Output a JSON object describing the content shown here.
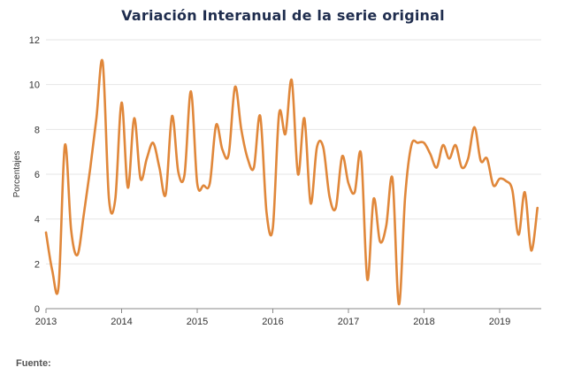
{
  "chart_data": {
    "type": "line",
    "title": "Variación Interanual de la serie original",
    "xlabel": "",
    "ylabel": "Porcentajes",
    "ylim": [
      0,
      12
    ],
    "yticks": [
      "0",
      "2",
      "4",
      "6",
      "8",
      "10",
      "12"
    ],
    "xticks": [
      "2013",
      "2014",
      "2015",
      "2016",
      "2017",
      "2018",
      "2019"
    ],
    "xlim": [
      2013.0,
      2019.55
    ],
    "grid": "horizontal",
    "line_color": "#e0873a",
    "series": [
      {
        "x": [
          2013.0,
          2013.083,
          2013.167,
          2013.25,
          2013.333,
          2013.417,
          2013.5,
          2013.583,
          2013.667,
          2013.75,
          2013.833,
          2013.917,
          2014.0,
          2014.083,
          2014.167,
          2014.25,
          2014.333,
          2014.417,
          2014.5,
          2014.583,
          2014.667,
          2014.75,
          2014.833,
          2014.917,
          2015.0,
          2015.083,
          2015.167,
          2015.25,
          2015.333,
          2015.417,
          2015.5,
          2015.583,
          2015.667,
          2015.75,
          2015.833,
          2015.917,
          2016.0,
          2016.083,
          2016.167,
          2016.25,
          2016.333,
          2016.417,
          2016.5,
          2016.583,
          2016.667,
          2016.75,
          2016.833,
          2016.917,
          2017.0,
          2017.083,
          2017.167,
          2017.25,
          2017.333,
          2017.417,
          2017.5,
          2017.583,
          2017.667,
          2017.75,
          2017.833,
          2017.917,
          2018.0,
          2018.083,
          2018.167,
          2018.25,
          2018.333,
          2018.417,
          2018.5,
          2018.583,
          2018.667,
          2018.75,
          2018.833,
          2018.917,
          2019.0,
          2019.083,
          2019.167,
          2019.25,
          2019.333,
          2019.417,
          2019.5
        ],
        "y": [
          3.4,
          1.7,
          1.0,
          7.3,
          3.5,
          2.4,
          4.2,
          6.2,
          8.5,
          11.0,
          4.9,
          4.9,
          9.2,
          5.4,
          8.5,
          5.8,
          6.7,
          7.4,
          6.3,
          5.1,
          8.6,
          6.1,
          6.0,
          9.7,
          5.6,
          5.5,
          5.6,
          8.2,
          7.1,
          6.9,
          9.9,
          8.0,
          6.7,
          6.3,
          8.6,
          4.3,
          3.6,
          8.7,
          7.8,
          10.2,
          6.0,
          8.5,
          4.7,
          7.2,
          7.2,
          5.0,
          4.5,
          6.8,
          5.6,
          5.2,
          6.9,
          1.3,
          4.9,
          3.0,
          3.7,
          5.8,
          0.2,
          5.0,
          7.3,
          7.4,
          7.4,
          6.9,
          6.3,
          7.3,
          6.7,
          7.3,
          6.3,
          6.7,
          8.1,
          6.6,
          6.7,
          5.5,
          5.8,
          5.7,
          5.3,
          3.3,
          5.2,
          2.6,
          4.5
        ]
      }
    ]
  },
  "footer": {
    "source_label": "Fuente:"
  }
}
